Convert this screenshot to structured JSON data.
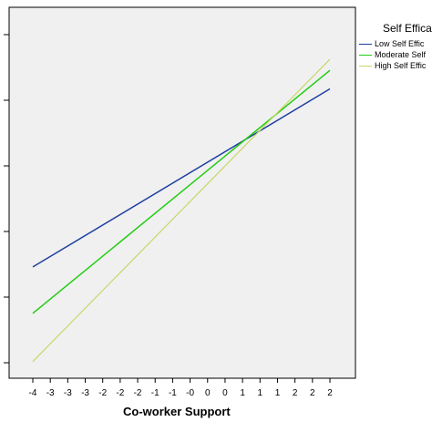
{
  "chart_data": {
    "type": "line",
    "title": "",
    "xlabel": "Co-worker Support",
    "ylabel": "",
    "x": [
      -4,
      2
    ],
    "x_tick_labels": [
      "-4",
      "-3",
      "-3",
      "-3",
      "-2",
      "-2",
      "-2",
      "-1",
      "-1",
      "-0",
      "0",
      "0",
      "1",
      "1",
      "1",
      "2",
      "2",
      "2"
    ],
    "legend_title": "Self Effica",
    "legend_position": "right",
    "plot_background": "#f0f0f0",
    "series": [
      {
        "name": "Low Self Effic",
        "color": "#1f3fa0",
        "y": [
          0.3,
          0.78
        ]
      },
      {
        "name": "Moderate Self",
        "color": "#22cc11",
        "y": [
          0.175,
          0.83
        ]
      },
      {
        "name": "High Self Effic",
        "color": "#c8d66a",
        "y": [
          0.045,
          0.86
        ]
      }
    ]
  }
}
